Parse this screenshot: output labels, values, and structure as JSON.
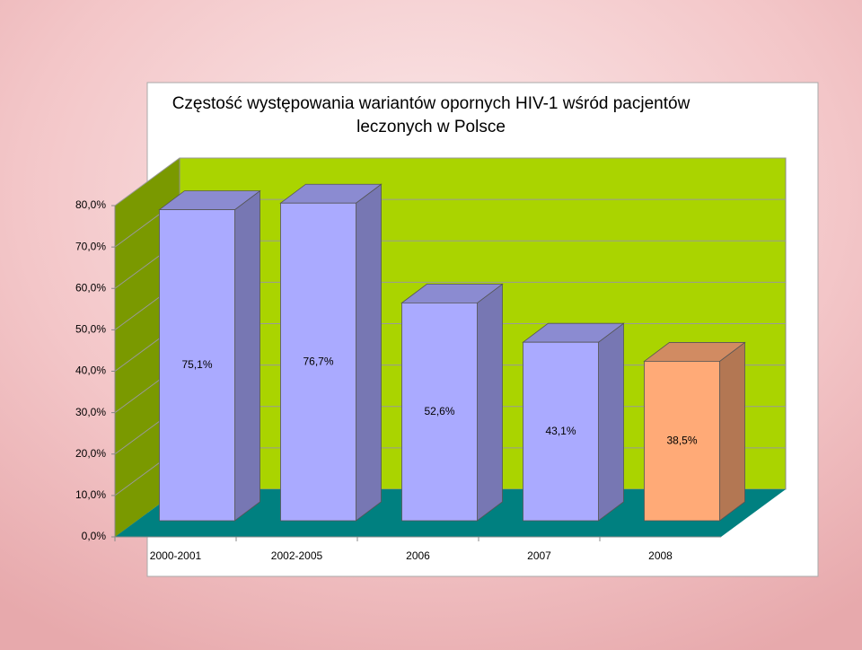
{
  "chart_data": {
    "type": "bar3d",
    "title": [
      "Częstość występowania wariantów opornych HIV-1 wśród pacjentów",
      "leczonych w Polsce"
    ],
    "categories": [
      "2000-2001",
      "2002-2005",
      "2006",
      "2007",
      "2008"
    ],
    "values": [
      75.1,
      76.7,
      52.6,
      43.1,
      38.5
    ],
    "value_labels": [
      "75,1%",
      "76,7%",
      "52,6%",
      "43,1%",
      "38,5%"
    ],
    "colors": [
      "#aaaaff",
      "#aaaaff",
      "#aaaaff",
      "#aaaaff",
      "#ffaa77"
    ],
    "ylim": [
      0,
      80
    ],
    "yticks": [
      {
        "value": 0,
        "label": "0,0%"
      },
      {
        "value": 10,
        "label": "10,0%"
      },
      {
        "value": 20,
        "label": "20,0%"
      },
      {
        "value": 30,
        "label": "30,0%"
      },
      {
        "value": 40,
        "label": "40,0%"
      },
      {
        "value": 50,
        "label": "50,0%"
      },
      {
        "value": 60,
        "label": "60,0%"
      },
      {
        "value": 70,
        "label": "70,0%"
      },
      {
        "value": 80,
        "label": "80,0%"
      }
    ],
    "grid": true
  }
}
